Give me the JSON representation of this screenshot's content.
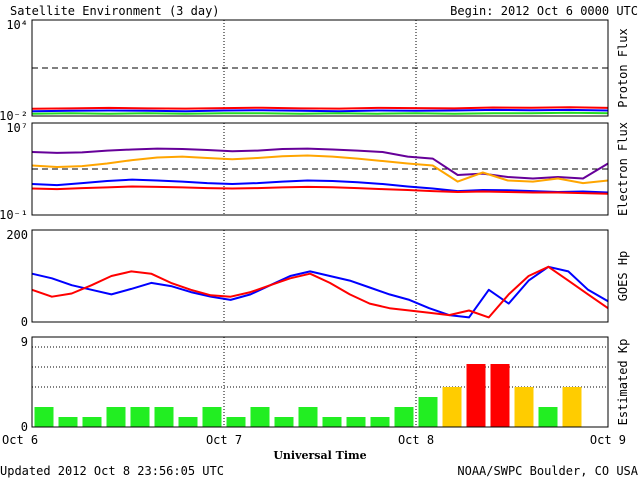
{
  "header": {
    "title": "Satellite Environment (3 day)",
    "begin": "Begin:  2012 Oct 6 0000 UTC"
  },
  "footer": {
    "updated": "Updated 2012 Oct  8 23:56:05 UTC",
    "credit": "NOAA/SWPC Boulder, CO USA",
    "xlabel": "Universal Time"
  },
  "colors": {
    "red": "#ff0000",
    "blue": "#0000ff",
    "green": "#22dd22",
    "purple": "#660099",
    "orange": "#ffa500",
    "kp_quiet": "#22ee22",
    "kp_active": "#ffcc00",
    "kp_storm": "#ff0000"
  },
  "chart_data": [
    {
      "id": "proton",
      "type": "line",
      "ylabel": "Proton Flux",
      "y_scale": "log",
      "ylim": [
        0.01,
        10000
      ],
      "ytick_labels": [
        "10⁴",
        "10⁻²"
      ],
      "threshold": 10,
      "x_ticks": [
        "Oct 6",
        "Oct 7",
        "Oct 8",
        "Oct 9"
      ],
      "series": [
        {
          "values": [
            0.028,
            0.03,
            0.032,
            0.03,
            0.029,
            0.031,
            0.033,
            0.03,
            0.029,
            0.032,
            0.031,
            0.03,
            0.034,
            0.033,
            0.035,
            0.032
          ]
        },
        {
          "values": [
            0.02,
            0.021,
            0.022,
            0.021,
            0.02,
            0.022,
            0.023,
            0.021,
            0.02,
            0.022,
            0.021,
            0.022,
            0.024,
            0.023,
            0.024,
            0.022
          ]
        },
        {
          "values": [
            0.014,
            0.015,
            0.014,
            0.015,
            0.014,
            0.015,
            0.015,
            0.014,
            0.015,
            0.014,
            0.015,
            0.014,
            0.015,
            0.015,
            0.016,
            0.015
          ]
        }
      ]
    },
    {
      "id": "electron",
      "type": "line",
      "ylabel": "Electron Flux",
      "y_scale": "log",
      "ylim": [
        0.1,
        10000000
      ],
      "ytick_labels": [
        "10⁷",
        "10⁻¹"
      ],
      "threshold": 1000,
      "x_ticks": [
        "Oct 6",
        "Oct 7",
        "Oct 8",
        "Oct 9"
      ],
      "series": [
        {
          "values": [
            30000,
            25000,
            28000,
            40000,
            50000,
            60000,
            55000,
            45000,
            35000,
            40000,
            55000,
            60000,
            50000,
            40000,
            30000,
            12000,
            8000,
            300,
            400,
            200,
            150,
            200,
            150,
            3000
          ]
        },
        {
          "values": [
            2000,
            1500,
            1800,
            3000,
            6000,
            10000,
            12000,
            9000,
            7000,
            9000,
            13000,
            15000,
            12000,
            8000,
            5000,
            3000,
            2000,
            80,
            500,
            100,
            80,
            150,
            60,
            100
          ]
        },
        {
          "values": [
            50,
            40,
            60,
            90,
            120,
            100,
            80,
            60,
            50,
            60,
            80,
            100,
            90,
            70,
            50,
            30,
            20,
            12,
            15,
            14,
            12,
            10,
            11,
            9
          ]
        },
        {
          "values": [
            20,
            18,
            22,
            25,
            30,
            28,
            25,
            22,
            20,
            22,
            25,
            28,
            26,
            22,
            18,
            15,
            12,
            10,
            11,
            10,
            9,
            9,
            8,
            7
          ]
        }
      ]
    },
    {
      "id": "hp",
      "type": "line",
      "ylabel": "GOES Hp",
      "ylim": [
        0,
        200
      ],
      "ytick_labels": [
        "200",
        "0"
      ],
      "x_ticks": [
        "Oct 6",
        "Oct 7",
        "Oct 8",
        "Oct 9"
      ],
      "series": [
        {
          "values": [
            105,
            95,
            80,
            70,
            60,
            72,
            85,
            78,
            65,
            55,
            48,
            60,
            80,
            100,
            110,
            100,
            90,
            75,
            60,
            48,
            30,
            15,
            10,
            70,
            40,
            90,
            120,
            110,
            70,
            45
          ]
        },
        {
          "values": [
            70,
            55,
            62,
            80,
            100,
            110,
            105,
            85,
            70,
            58,
            55,
            65,
            80,
            95,
            105,
            85,
            60,
            40,
            30,
            25,
            20,
            15,
            25,
            10,
            60,
            100,
            120,
            90,
            60,
            30
          ]
        }
      ]
    },
    {
      "id": "kp",
      "type": "bar",
      "ylabel": "Estimated Kp",
      "ylim": [
        0,
        9
      ],
      "ytick_labels": [
        "9",
        "0"
      ],
      "x_ticks": [
        "Oct 6",
        "Oct 7",
        "Oct 8",
        "Oct 9"
      ],
      "values": [
        2,
        1,
        1,
        2,
        2,
        2,
        1,
        2,
        1,
        2,
        1,
        2,
        1,
        1,
        1,
        2,
        3,
        4,
        6.3,
        6.3,
        4,
        2,
        4
      ]
    }
  ]
}
